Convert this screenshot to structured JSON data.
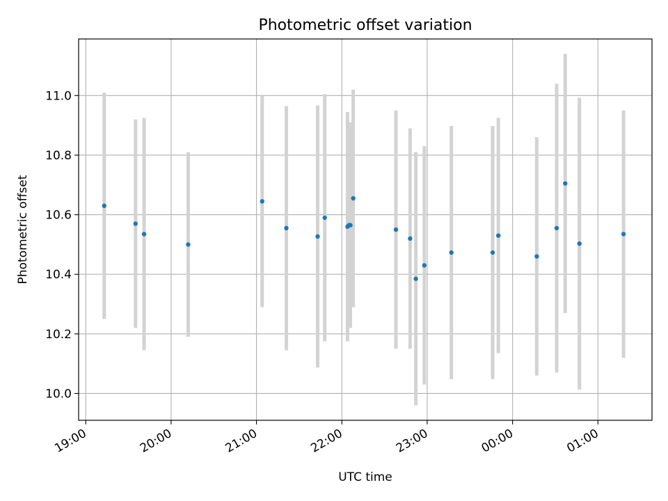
{
  "chart_data": {
    "type": "scatter",
    "title": "Photometric offset variation",
    "xlabel": "UTC time",
    "ylabel": "Photometric offset",
    "x_ticks": [
      "19:00",
      "20:00",
      "21:00",
      "22:00",
      "23:00",
      "00:00",
      "01:00"
    ],
    "y_ticks": [
      "10.0",
      "10.2",
      "10.4",
      "10.6",
      "10.8",
      "11.0"
    ],
    "xlim": [
      "18:55",
      "01:38"
    ],
    "ylim": [
      9.91,
      11.19
    ],
    "grid": true,
    "colors": {
      "points": "#1f77b4",
      "errorbars": "#d3d3d3",
      "grid": "#b0b0b0"
    },
    "series": [
      {
        "x": [
          "19:13",
          "19:35",
          "19:41",
          "20:12",
          "21:04",
          "21:21",
          "21:43",
          "21:48",
          "22:04",
          "22:05",
          "22:06",
          "22:08",
          "22:38",
          "22:48",
          "22:52",
          "22:58",
          "23:17",
          "23:46",
          "23:50",
          "00:17",
          "00:31",
          "00:37",
          "00:47",
          "01:18"
        ],
        "y": [
          10.63,
          10.57,
          10.535,
          10.5,
          10.645,
          10.555,
          10.527,
          10.59,
          10.56,
          10.565,
          10.565,
          10.655,
          10.55,
          10.52,
          10.385,
          10.43,
          10.473,
          10.473,
          10.53,
          10.46,
          10.555,
          10.705,
          10.503,
          10.535
        ],
        "yerr": [
          0.38,
          0.35,
          0.39,
          0.31,
          0.355,
          0.41,
          0.44,
          0.415,
          0.385,
          0.345,
          0.345,
          0.365,
          0.4,
          0.37,
          0.425,
          0.4,
          0.425,
          0.425,
          0.395,
          0.4,
          0.485,
          0.435,
          0.49,
          0.415
        ]
      }
    ]
  }
}
